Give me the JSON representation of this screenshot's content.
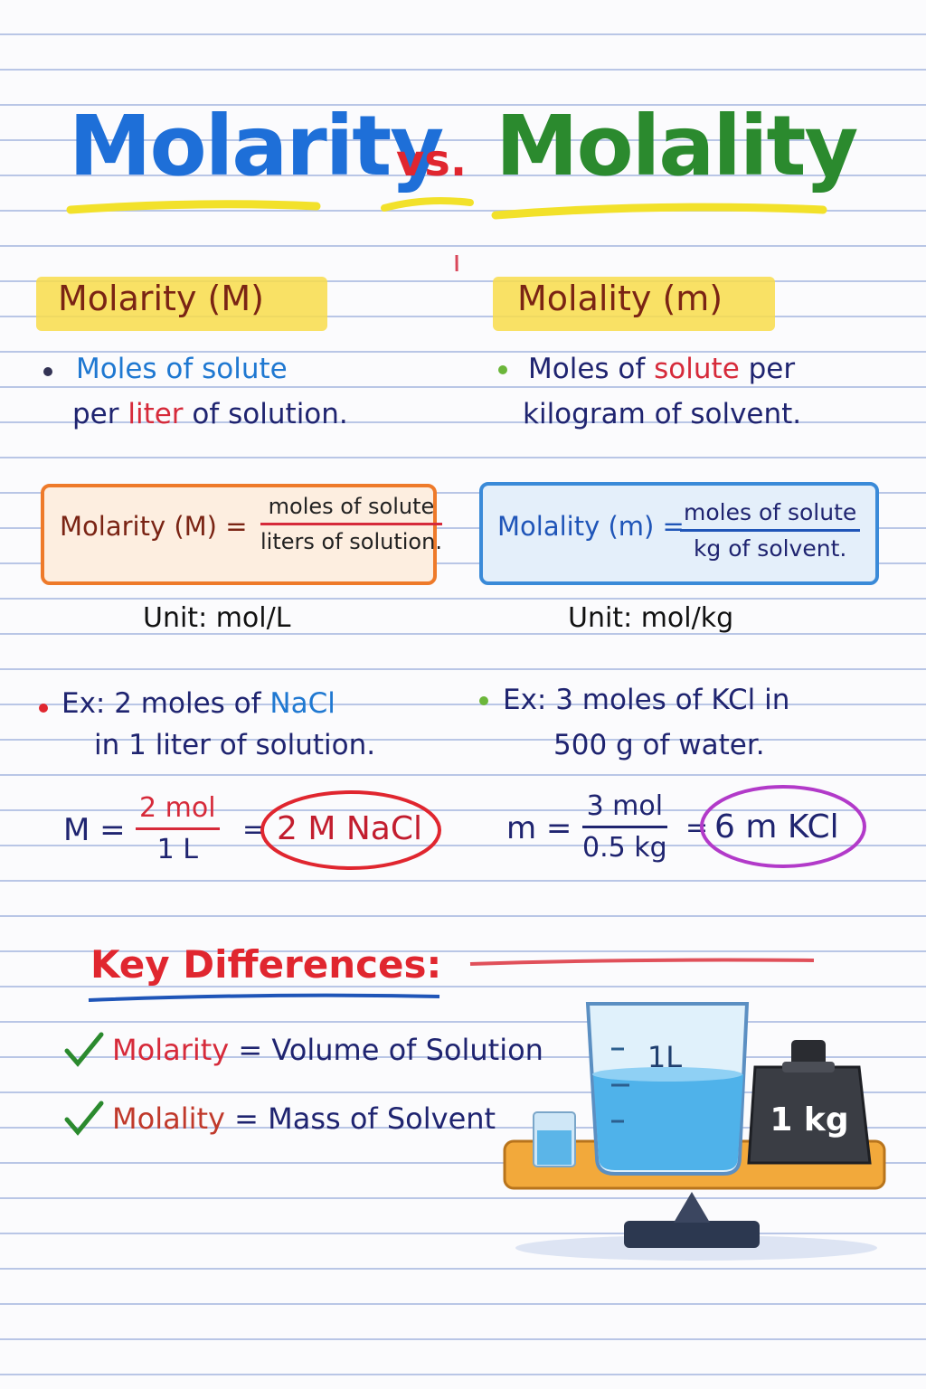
{
  "title": {
    "left": "Molarity",
    "middle": "vs.",
    "right": "Molality"
  },
  "molarity": {
    "heading": "Molarity (M)",
    "definition": [
      "Moles of solute",
      "per",
      "liter",
      "of solution."
    ],
    "formula": {
      "lhs": "Molarity (M) =",
      "numerator": "moles of solute",
      "denominator": "liters of solution."
    },
    "unit": "Unit: mol/L",
    "example": [
      "Ex: 2 moles of",
      "NaCl",
      "in 1 liter of solution."
    ],
    "calc": {
      "lhs": "M =",
      "numerator": "2 mol",
      "denominator": "1 L",
      "equals": "=",
      "result": "2 M NaCl"
    }
  },
  "molality": {
    "heading": "Molality (m)",
    "definition": [
      "Moles of",
      "solute",
      "per",
      "kilogram of solvent."
    ],
    "formula": {
      "lhs": "Molality (m) =",
      "numerator": "moles of solute",
      "denominator": "kg of solvent."
    },
    "unit": "Unit: mol/kg",
    "example": [
      "Ex: 3 moles of KCl in",
      "500 g of water."
    ],
    "calc": {
      "lhs": "m =",
      "numerator": "3 mol",
      "denominator": "0.5 kg",
      "equals": "=",
      "result": "6 m KCl"
    }
  },
  "key_differences": {
    "heading": "Key Differences:",
    "items": [
      {
        "term": "Molarity",
        "text": "= Volume of Solution"
      },
      {
        "term": "Molality",
        "text": "= Mass of Solvent"
      }
    ]
  },
  "illustration": {
    "beaker_label": "1L",
    "weight_label": "1 kg"
  }
}
